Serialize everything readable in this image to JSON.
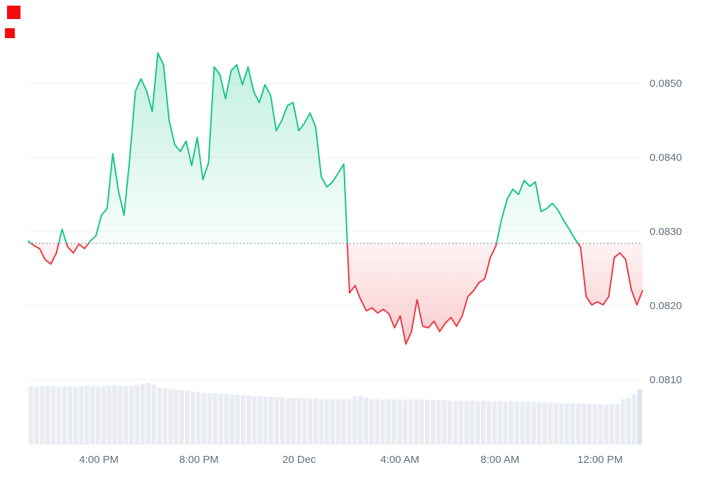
{
  "chart_data": {
    "type": "line",
    "title": "",
    "baseline": 0.08284,
    "y_ticks": [
      0.085,
      0.084,
      0.083,
      0.082,
      0.081
    ],
    "y_tick_labels": [
      "0.0850",
      "0.0840",
      "0.0830",
      "0.0820",
      "0.0810"
    ],
    "ylim": [
      0.0809,
      0.0856
    ],
    "x_tick_labels": [
      "4:00 PM",
      "8:00 PM",
      "20 Dec",
      "4:00 AM",
      "8:00 AM",
      "12:00 PM"
    ],
    "x_tick_pos": [
      0.115,
      0.278,
      0.441,
      0.605,
      0.768,
      0.931
    ],
    "legend": "none",
    "grid": "horizontal",
    "prices": [
      0.08287,
      0.08281,
      0.08277,
      0.08262,
      0.08256,
      0.08271,
      0.08303,
      0.08279,
      0.08271,
      0.08283,
      0.08277,
      0.08287,
      0.08294,
      0.08322,
      0.08331,
      0.08405,
      0.08355,
      0.08322,
      0.08398,
      0.08489,
      0.08506,
      0.0849,
      0.08462,
      0.08541,
      0.08525,
      0.0845,
      0.08417,
      0.08408,
      0.08422,
      0.08389,
      0.08427,
      0.0837,
      0.08393,
      0.08522,
      0.08512,
      0.08479,
      0.08517,
      0.08525,
      0.08498,
      0.08522,
      0.08489,
      0.08474,
      0.08498,
      0.08484,
      0.08436,
      0.0845,
      0.0847,
      0.08474,
      0.08436,
      0.08446,
      0.0846,
      0.08441,
      0.08374,
      0.0836,
      0.08367,
      0.08379,
      0.08391,
      0.08217,
      0.08227,
      0.08208,
      0.08193,
      0.08197,
      0.0819,
      0.08195,
      0.08189,
      0.0817,
      0.08186,
      0.08148,
      0.08165,
      0.08208,
      0.08172,
      0.0817,
      0.08179,
      0.08165,
      0.08176,
      0.08184,
      0.08172,
      0.08186,
      0.08212,
      0.0822,
      0.08231,
      0.08236,
      0.08265,
      0.08281,
      0.08317,
      0.08344,
      0.08357,
      0.0835,
      0.08369,
      0.08361,
      0.08367,
      0.08327,
      0.08331,
      0.08338,
      0.08329,
      0.08315,
      0.08303,
      0.0829,
      0.08279,
      0.08212,
      0.08201,
      0.08205,
      0.08201,
      0.08212,
      0.08265,
      0.08271,
      0.08262,
      0.08222,
      0.08201,
      0.0822
    ],
    "volume": [
      90,
      89,
      90,
      91,
      90,
      89,
      90,
      90,
      89,
      90,
      91,
      90,
      89,
      90,
      91,
      92,
      91,
      90,
      91,
      92,
      94,
      95,
      93,
      88,
      87,
      86,
      85,
      84,
      83,
      82,
      81,
      80,
      79,
      79,
      78,
      78,
      77,
      77,
      76,
      76,
      75,
      75,
      74,
      74,
      73,
      73,
      72,
      72,
      72,
      71,
      71,
      71,
      70,
      70,
      70,
      70,
      70,
      70,
      74,
      75,
      73,
      70,
      70,
      69,
      70,
      69,
      70,
      69,
      69,
      70,
      69,
      69,
      69,
      68,
      69,
      68,
      68,
      68,
      68,
      68,
      67,
      68,
      67,
      67,
      67,
      66,
      67,
      66,
      66,
      66,
      66,
      65,
      65,
      65,
      64,
      64,
      64,
      63,
      63,
      63,
      63,
      62,
      62,
      62,
      62,
      63,
      70,
      72,
      78,
      85
    ],
    "colors": {
      "up": "#16c784",
      "down": "#ea3943",
      "grid": "#eff2f5",
      "baseline_line": "#98a1ab",
      "axis_text": "#616e7f",
      "volume": "#e9edf2",
      "volume_last": "#dbe2ea",
      "marker": "#f40b0b",
      "background": "#ffffff"
    }
  }
}
